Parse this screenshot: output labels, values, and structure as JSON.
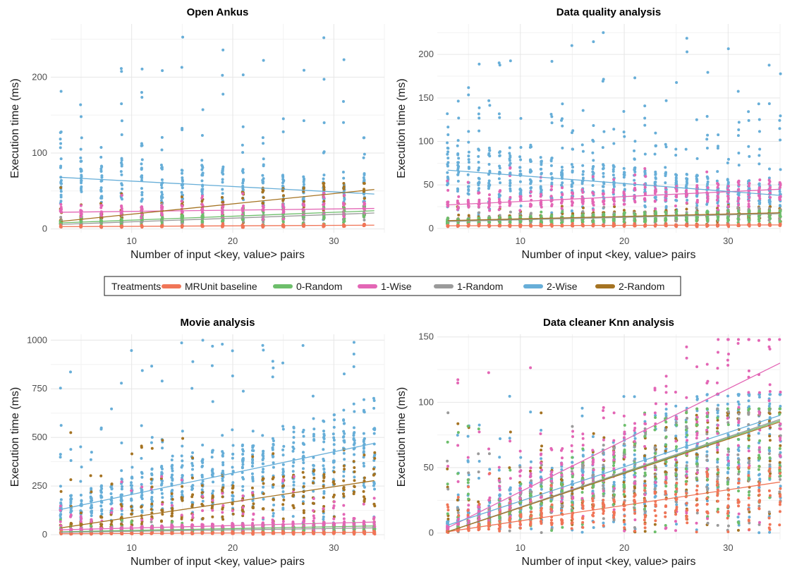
{
  "colors": {
    "MRUnit baseline": "#F07557",
    "0-Random": "#6DBE6B",
    "1-Wise": "#E366B5",
    "1-Random": "#9A9A9A",
    "2-Wise": "#67AED8",
    "2-Random": "#A57322"
  },
  "legend": {
    "title": "Treatments",
    "items": [
      "MRUnit baseline",
      "0-Random",
      "1-Wise",
      "1-Random",
      "2-Wise",
      "2-Random"
    ],
    "placement": "center"
  },
  "chart_data": [
    {
      "type": "scatter",
      "title": "Open Ankus",
      "xlabel": "Number of input <key, value> pairs",
      "ylabel": "Execution time (ms)",
      "xlim": [
        2,
        35
      ],
      "ylim": [
        -5,
        270
      ],
      "xticks": [
        10,
        20,
        30
      ],
      "yticks": [
        0,
        100,
        200
      ],
      "x_columns": [
        3,
        5,
        7,
        9,
        11,
        13,
        15,
        17,
        19,
        21,
        23,
        25,
        27,
        29,
        31,
        33
      ],
      "series": [
        {
          "name": "MRUnit baseline",
          "range": [
            2,
            8
          ],
          "trend": [
            [
              3,
              3
            ],
            [
              34,
              5
            ]
          ]
        },
        {
          "name": "0-Random",
          "range": [
            5,
            30
          ],
          "trend": [
            [
              3,
              8
            ],
            [
              34,
              24
            ]
          ]
        },
        {
          "name": "1-Wise",
          "range": [
            12,
            50
          ],
          "trend": [
            [
              3,
              22
            ],
            [
              34,
              27
            ]
          ]
        },
        {
          "name": "1-Random",
          "range": [
            5,
            35
          ],
          "trend": [
            [
              3,
              6
            ],
            [
              34,
              21
            ]
          ]
        },
        {
          "name": "2-Wise",
          "range": [
            10,
            262
          ],
          "trend": [
            [
              3,
              68
            ],
            [
              34,
              46
            ]
          ]
        },
        {
          "name": "2-Random",
          "range": [
            6,
            60
          ],
          "trend": [
            [
              3,
              10
            ],
            [
              34,
              52
            ]
          ]
        }
      ]
    },
    {
      "type": "scatter",
      "title": "Data quality analysis",
      "xlabel": "Number of input <key, value> pairs",
      "ylabel": "Execution time (ms)",
      "xlim": [
        2,
        35
      ],
      "ylim": [
        -5,
        235
      ],
      "xticks": [
        10,
        20,
        30
      ],
      "yticks": [
        0,
        50,
        100,
        150,
        200
      ],
      "x_columns": [
        3,
        4,
        5,
        6,
        7,
        8,
        9,
        10,
        11,
        12,
        13,
        14,
        15,
        16,
        17,
        18,
        19,
        20,
        21,
        22,
        23,
        24,
        25,
        26,
        27,
        28,
        29,
        30,
        31,
        32,
        33,
        34,
        35
      ],
      "series": [
        {
          "name": "MRUnit baseline",
          "range": [
            2,
            6
          ],
          "trend": [
            [
              3,
              3
            ],
            [
              35,
              4
            ]
          ]
        },
        {
          "name": "0-Random",
          "range": [
            3,
            20
          ],
          "trend": [
            [
              3,
              8
            ],
            [
              35,
              17
            ]
          ]
        },
        {
          "name": "1-Wise",
          "range": [
            20,
            70
          ],
          "trend": [
            [
              3,
              27
            ],
            [
              35,
              45
            ]
          ]
        },
        {
          "name": "1-Random",
          "range": [
            3,
            25
          ],
          "trend": [
            [
              3,
              8
            ],
            [
              35,
              17
            ]
          ]
        },
        {
          "name": "2-Wise",
          "range": [
            15,
            228
          ],
          "trend": [
            [
              3,
              67
            ],
            [
              35,
              38
            ]
          ]
        },
        {
          "name": "2-Random",
          "range": [
            3,
            30
          ],
          "trend": [
            [
              3,
              9
            ],
            [
              35,
              18
            ]
          ]
        }
      ]
    },
    {
      "type": "scatter",
      "title": "Movie analysis",
      "xlabel": "Number of input <key, value> pairs",
      "ylabel": "Execution time (ms)",
      "xlim": [
        2,
        35
      ],
      "ylim": [
        -25,
        1030
      ],
      "xticks": [
        10,
        20,
        30
      ],
      "yticks": [
        0,
        250,
        500,
        750,
        1000
      ],
      "x_columns": [
        3,
        4,
        5,
        6,
        7,
        8,
        9,
        10,
        11,
        12,
        13,
        14,
        15,
        16,
        17,
        18,
        19,
        20,
        21,
        22,
        23,
        24,
        25,
        26,
        27,
        28,
        29,
        30,
        31,
        32,
        33,
        34
      ],
      "series": [
        {
          "name": "MRUnit baseline",
          "range": [
            2,
            20
          ],
          "trend": [
            [
              3,
              5
            ],
            [
              34,
              12
            ]
          ]
        },
        {
          "name": "0-Random",
          "range": [
            5,
            80
          ],
          "trend": [
            [
              3,
              15
            ],
            [
              34,
              45
            ]
          ]
        },
        {
          "name": "1-Wise",
          "range": [
            20,
            300
          ],
          "trend": [
            [
              3,
              25
            ],
            [
              34,
              65
            ]
          ]
        },
        {
          "name": "1-Random",
          "range": [
            5,
            80
          ],
          "trend": [
            [
              3,
              12
            ],
            [
              34,
              35
            ]
          ]
        },
        {
          "name": "2-Wise",
          "range": [
            30,
            1010
          ],
          "trend": [
            [
              3,
              130
            ],
            [
              34,
              470
            ]
          ]
        },
        {
          "name": "2-Random",
          "range": [
            10,
            550
          ],
          "trend": [
            [
              3,
              35
            ],
            [
              34,
              278
            ]
          ]
        }
      ]
    },
    {
      "type": "scatter",
      "title": "Data cleaner Knn analysis",
      "xlabel": "Number of input <key, value> pairs",
      "ylabel": "Execution time (ms)",
      "xlim": [
        2,
        35
      ],
      "ylim": [
        -5,
        152
      ],
      "xticks": [
        10,
        20,
        30
      ],
      "yticks": [
        0,
        50,
        100,
        150
      ],
      "x_columns": [
        3,
        4,
        5,
        6,
        7,
        8,
        9,
        10,
        11,
        12,
        13,
        14,
        15,
        16,
        17,
        18,
        19,
        20,
        21,
        22,
        23,
        24,
        25,
        26,
        27,
        28,
        29,
        30,
        31,
        32,
        33,
        34,
        35
      ],
      "series": [
        {
          "name": "MRUnit baseline",
          "range": [
            0,
            50
          ],
          "trend": [
            [
              3,
              1
            ],
            [
              35,
              39
            ]
          ]
        },
        {
          "name": "0-Random",
          "range": [
            0,
            95
          ],
          "trend": [
            [
              3,
              1
            ],
            [
              35,
              86
            ]
          ]
        },
        {
          "name": "1-Wise",
          "range": [
            0,
            148
          ],
          "trend": [
            [
              3,
              4
            ],
            [
              35,
              130
            ]
          ]
        },
        {
          "name": "1-Random",
          "range": [
            0,
            95
          ],
          "trend": [
            [
              3,
              1
            ],
            [
              35,
              87
            ]
          ]
        },
        {
          "name": "2-Wise",
          "range": [
            0,
            106
          ],
          "trend": [
            [
              3,
              6
            ],
            [
              35,
              90
            ]
          ]
        },
        {
          "name": "2-Random",
          "range": [
            0,
            92
          ],
          "trend": [
            [
              3,
              1
            ],
            [
              35,
              85
            ]
          ]
        }
      ]
    }
  ]
}
